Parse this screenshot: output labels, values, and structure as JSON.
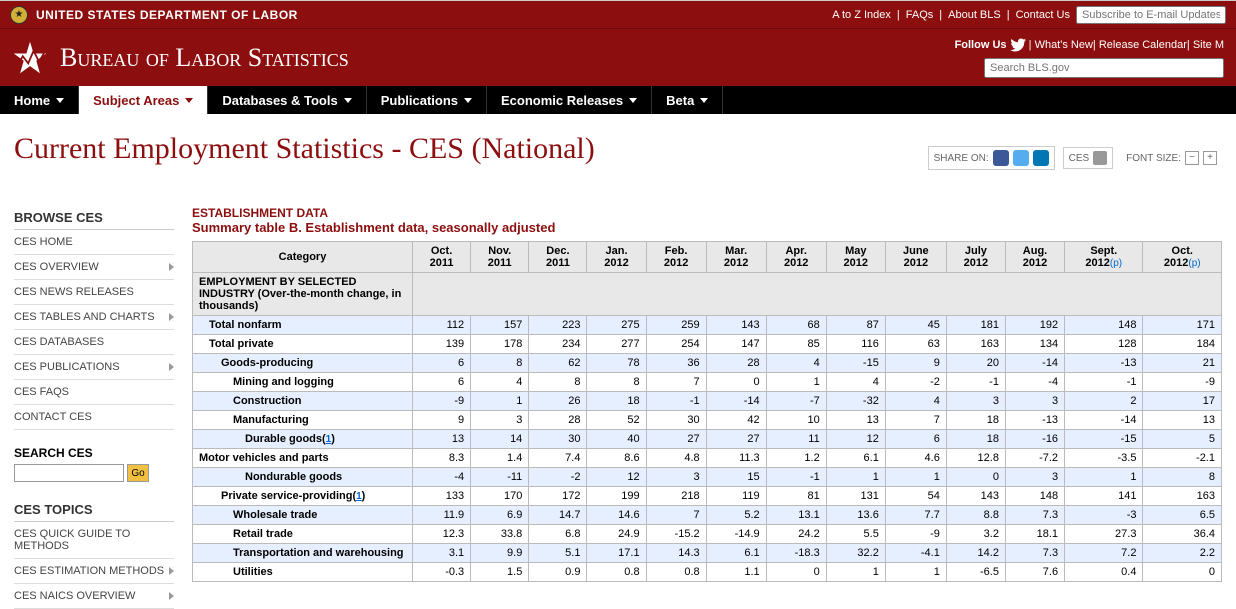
{
  "topbar": {
    "dol": "UNITED STATES DEPARTMENT OF LABOR",
    "links": [
      "A to Z Index",
      "FAQs",
      "About BLS",
      "Contact Us"
    ],
    "subscribe_placeholder": "Subscribe to E-mail Updates"
  },
  "header": {
    "name_html": "Bureau of Labor Statistics",
    "follow": "Follow Us",
    "links": [
      "What's New",
      "Release Calendar",
      "Site M"
    ],
    "search_placeholder": "Search BLS.gov"
  },
  "nav": [
    {
      "label": "Home",
      "active": false
    },
    {
      "label": "Subject Areas",
      "active": true
    },
    {
      "label": "Databases & Tools",
      "active": false
    },
    {
      "label": "Publications",
      "active": false
    },
    {
      "label": "Economic Releases",
      "active": false
    },
    {
      "label": "Beta",
      "active": false
    }
  ],
  "page_title": "Current Employment Statistics - CES (National)",
  "share_label": "SHARE ON:",
  "ces_label": "CES",
  "fontsize_label": "FONT SIZE:",
  "sidebar": {
    "browse_head": "BROWSE CES",
    "browse": [
      {
        "label": "CES HOME",
        "sub": false
      },
      {
        "label": "CES OVERVIEW",
        "sub": true
      },
      {
        "label": "CES NEWS RELEASES",
        "sub": false
      },
      {
        "label": "CES TABLES AND CHARTS",
        "sub": true
      },
      {
        "label": "CES DATABASES",
        "sub": false
      },
      {
        "label": "CES PUBLICATIONS",
        "sub": true
      },
      {
        "label": "CES FAQS",
        "sub": false
      },
      {
        "label": "CONTACT CES",
        "sub": false
      }
    ],
    "search_head": "SEARCH CES",
    "go_label": "Go",
    "topics_head": "CES TOPICS",
    "topics": [
      {
        "label": "CES QUICK GUIDE TO METHODS",
        "sub": false
      },
      {
        "label": "CES ESTIMATION METHODS",
        "sub": true
      },
      {
        "label": "CES NAICS OVERVIEW",
        "sub": true
      }
    ]
  },
  "table": {
    "head1": "ESTABLISHMENT DATA",
    "head2": "Summary table B. Establishment data, seasonally adjusted",
    "cat_label": "Category",
    "section": "EMPLOYMENT BY SELECTED INDUSTRY (Over-the-month change, in thousands)",
    "columns": [
      {
        "m": "Oct.",
        "y": "2011",
        "p": false
      },
      {
        "m": "Nov.",
        "y": "2011",
        "p": false
      },
      {
        "m": "Dec.",
        "y": "2011",
        "p": false
      },
      {
        "m": "Jan.",
        "y": "2012",
        "p": false
      },
      {
        "m": "Feb.",
        "y": "2012",
        "p": false
      },
      {
        "m": "Mar.",
        "y": "2012",
        "p": false
      },
      {
        "m": "Apr.",
        "y": "2012",
        "p": false
      },
      {
        "m": "May",
        "y": "2012",
        "p": false
      },
      {
        "m": "June",
        "y": "2012",
        "p": false
      },
      {
        "m": "July",
        "y": "2012",
        "p": false
      },
      {
        "m": "Aug.",
        "y": "2012",
        "p": false
      },
      {
        "m": "Sept.",
        "y": "2012",
        "p": true
      },
      {
        "m": "Oct.",
        "y": "2012",
        "p": true
      }
    ],
    "rows": [
      {
        "label": "Total nonfarm",
        "indent": 1,
        "fn": false,
        "shade": true,
        "vals": [
          112,
          157,
          223,
          275,
          259,
          143,
          68,
          87,
          45,
          181,
          192,
          148,
          171
        ]
      },
      {
        "label": "Total private",
        "indent": 1,
        "fn": false,
        "shade": false,
        "vals": [
          139,
          178,
          234,
          277,
          254,
          147,
          85,
          116,
          63,
          163,
          134,
          128,
          184
        ]
      },
      {
        "label": "Goods-producing",
        "indent": 2,
        "fn": false,
        "shade": true,
        "vals": [
          6,
          8,
          62,
          78,
          36,
          28,
          4,
          -15,
          9,
          20,
          -14,
          -13,
          21
        ]
      },
      {
        "label": "Mining and logging",
        "indent": 3,
        "fn": false,
        "shade": false,
        "vals": [
          6,
          4,
          8,
          8,
          7,
          0,
          1,
          4,
          -2,
          -1,
          -4,
          -1,
          -9
        ]
      },
      {
        "label": "Construction",
        "indent": 3,
        "fn": false,
        "shade": true,
        "vals": [
          -9,
          1,
          26,
          18,
          -1,
          -14,
          -7,
          -32,
          4,
          3,
          3,
          2,
          17
        ]
      },
      {
        "label": "Manufacturing",
        "indent": 3,
        "fn": false,
        "shade": false,
        "vals": [
          9,
          3,
          28,
          52,
          30,
          42,
          10,
          13,
          7,
          18,
          -13,
          -14,
          13
        ]
      },
      {
        "label": "Durable goods",
        "indent": 4,
        "fn": true,
        "shade": true,
        "vals": [
          13,
          14,
          30,
          40,
          27,
          27,
          11,
          12,
          6,
          18,
          -16,
          -15,
          5
        ]
      },
      {
        "label": "Motor vehicles and parts",
        "indent": 5,
        "fn": false,
        "shade": false,
        "vals": [
          8.3,
          1.4,
          7.4,
          8.6,
          4.8,
          11.3,
          1.2,
          6.1,
          4.6,
          12.8,
          -7.2,
          -3.5,
          -2.1
        ]
      },
      {
        "label": "Nondurable goods",
        "indent": 4,
        "fn": false,
        "shade": true,
        "vals": [
          -4,
          -11,
          -2,
          12,
          3,
          15,
          -1,
          1,
          1,
          0,
          3,
          1,
          8
        ]
      },
      {
        "label": "Private service-providing",
        "indent": 2,
        "fn": true,
        "shade": false,
        "vals": [
          133,
          170,
          172,
          199,
          218,
          119,
          81,
          131,
          54,
          143,
          148,
          141,
          163
        ]
      },
      {
        "label": "Wholesale trade",
        "indent": 3,
        "fn": false,
        "shade": true,
        "vals": [
          11.9,
          6.9,
          14.7,
          14.6,
          7.0,
          5.2,
          13.1,
          13.6,
          7.7,
          8.8,
          7.3,
          -3.0,
          6.5
        ]
      },
      {
        "label": "Retail trade",
        "indent": 3,
        "fn": false,
        "shade": false,
        "vals": [
          12.3,
          33.8,
          6.8,
          24.9,
          -15.2,
          -14.9,
          24.2,
          5.5,
          -9.0,
          3.2,
          18.1,
          27.3,
          36.4
        ]
      },
      {
        "label": "Transportation and warehousing",
        "indent": 3,
        "fn": false,
        "shade": true,
        "vals": [
          3.1,
          9.9,
          5.1,
          17.1,
          14.3,
          6.1,
          -18.3,
          32.2,
          -4.1,
          14.2,
          7.3,
          7.2,
          2.2
        ]
      },
      {
        "label": "Utilities",
        "indent": 3,
        "fn": false,
        "shade": false,
        "vals": [
          -0.3,
          1.5,
          0.9,
          0.8,
          0.8,
          1.1,
          0.0,
          1.0,
          1.0,
          -6.5,
          7.6,
          0.4,
          0.0
        ]
      }
    ]
  }
}
